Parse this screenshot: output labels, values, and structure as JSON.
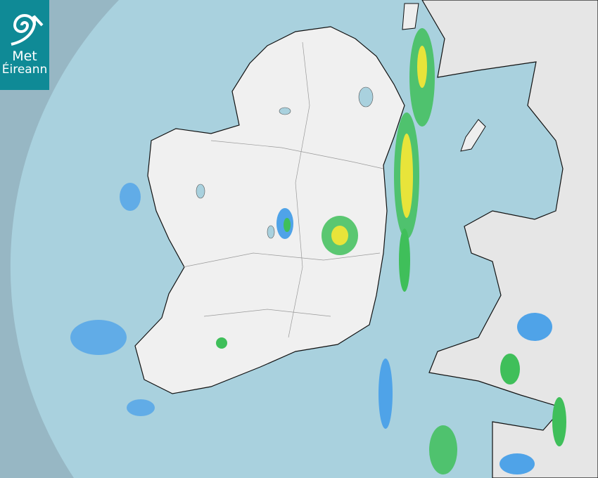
{
  "logo": {
    "line1": "Met",
    "line2": "Éireann",
    "background": "#0f8a96"
  },
  "map": {
    "type": "rainfall radar",
    "colors": {
      "sea_in_range": "#a9d1de",
      "sea_out_of_range": "#97b7c4",
      "land": "#f0f0f0",
      "rain_light": "#4fa3e8",
      "rain_moderate": "#3fbf5a",
      "rain_heavy": "#e8e43a"
    }
  }
}
